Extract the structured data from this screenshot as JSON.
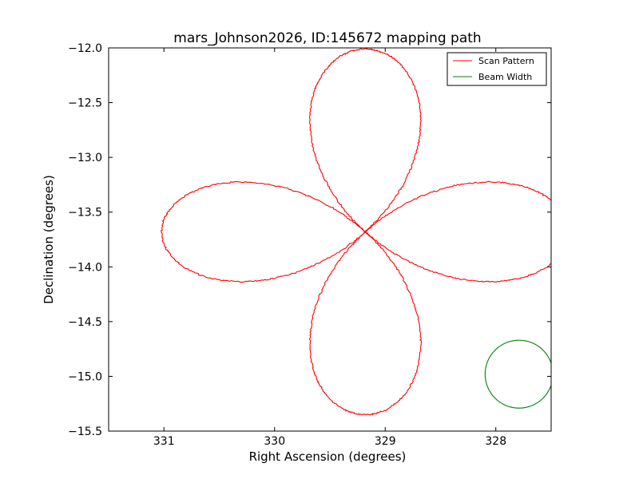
{
  "chart_data": {
    "type": "line",
    "title": "mars_Johnson2026, ID:145672 mapping path",
    "xlabel": "Right Ascension (degrees)",
    "ylabel": "Declination (degrees)",
    "xlim": [
      331.5,
      327.5
    ],
    "ylim": [
      -15.5,
      -12.0
    ],
    "x_ticks": [
      331,
      330,
      329,
      328
    ],
    "x_tick_labels": [
      "331",
      "330",
      "329",
      "328"
    ],
    "y_ticks": [
      -12.0,
      -12.5,
      -13.0,
      -13.5,
      -14.0,
      -14.5,
      -15.0,
      -15.5
    ],
    "y_tick_labels": [
      "−12.0",
      "−12.5",
      "−13.0",
      "−13.5",
      "−14.0",
      "−14.5",
      "−15.0",
      "−15.5"
    ],
    "grid": false,
    "legend_position": "top-right",
    "series": [
      {
        "name": "Scan Pattern",
        "color": "#ff0000",
        "pattern": "four-petal rose curve",
        "center": [
          329.18,
          -13.68
        ],
        "radius_x_deg": 1.84,
        "radius_y_deg": 1.67,
        "start_angle_deg": 44,
        "end_angle_deg": 405
      },
      {
        "name": "Beam Width",
        "color": "#008000",
        "shape": "circle",
        "center": [
          327.79,
          -14.98
        ],
        "radius_y_deg": 0.31
      }
    ]
  }
}
